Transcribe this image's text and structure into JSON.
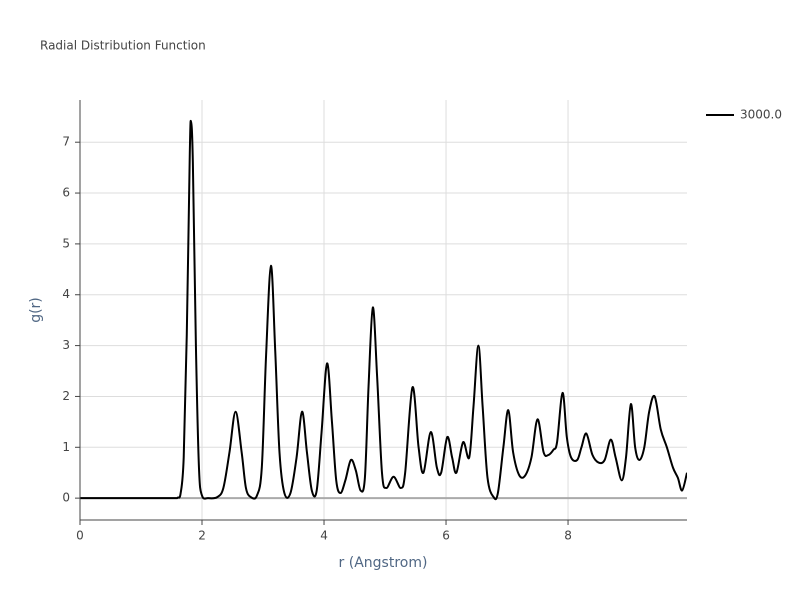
{
  "chart_data": {
    "type": "line",
    "title": "Radial Distribution Function",
    "x_label": "r (Angstrom)",
    "y_label": "g(r)",
    "x": [
      0,
      0.8,
      1.5,
      1.6,
      1.65,
      1.7,
      1.75,
      1.8,
      1.82,
      1.85,
      1.9,
      1.95,
      2.0,
      2.1,
      2.25,
      2.35,
      2.45,
      2.55,
      2.65,
      2.72,
      2.8,
      2.9,
      2.98,
      3.05,
      3.13,
      3.2,
      3.27,
      3.35,
      3.45,
      3.55,
      3.64,
      3.72,
      3.8,
      3.88,
      3.96,
      4.05,
      4.13,
      4.2,
      4.27,
      4.35,
      4.44,
      4.52,
      4.6,
      4.67,
      4.73,
      4.8,
      4.87,
      4.95,
      5.02,
      5.14,
      5.26,
      5.33,
      5.45,
      5.55,
      5.63,
      5.75,
      5.85,
      5.92,
      6.02,
      6.1,
      6.17,
      6.28,
      6.38,
      6.45,
      6.53,
      6.6,
      6.68,
      6.78,
      6.85,
      6.94,
      7.02,
      7.1,
      7.2,
      7.3,
      7.4,
      7.5,
      7.6,
      7.68,
      7.76,
      7.82,
      7.91,
      7.98,
      8.05,
      8.15,
      8.22,
      8.3,
      8.4,
      8.5,
      8.6,
      8.7,
      8.78,
      8.88,
      8.95,
      9.03,
      9.1,
      9.17,
      9.25,
      9.33,
      9.42,
      9.52,
      9.62,
      9.72,
      9.8,
      9.87,
      9.95
    ],
    "series": [
      {
        "name": "3000.0",
        "color": "#000000",
        "values": [
          0,
          0,
          0,
          0.01,
          0.1,
          0.8,
          3.2,
          6.8,
          7.4,
          6.6,
          3.0,
          0.6,
          0.05,
          0,
          0.02,
          0.2,
          0.9,
          1.7,
          0.9,
          0.2,
          0.02,
          0.05,
          0.6,
          2.8,
          4.57,
          2.9,
          0.9,
          0.1,
          0.1,
          0.8,
          1.7,
          0.9,
          0.15,
          0.15,
          1.3,
          2.65,
          1.5,
          0.35,
          0.1,
          0.35,
          0.75,
          0.55,
          0.15,
          0.4,
          2.2,
          3.75,
          2.4,
          0.5,
          0.2,
          0.42,
          0.2,
          0.5,
          2.18,
          1.0,
          0.5,
          1.3,
          0.6,
          0.5,
          1.2,
          0.8,
          0.5,
          1.1,
          0.8,
          1.8,
          3.0,
          1.8,
          0.4,
          0.02,
          0.1,
          1.0,
          1.73,
          0.9,
          0.45,
          0.45,
          0.8,
          1.55,
          0.9,
          0.85,
          0.95,
          1.1,
          2.07,
          1.2,
          0.8,
          0.75,
          1.0,
          1.27,
          0.85,
          0.7,
          0.75,
          1.15,
          0.8,
          0.35,
          0.8,
          1.85,
          1.0,
          0.75,
          1.0,
          1.7,
          2.0,
          1.35,
          1.0,
          0.6,
          0.4,
          0.15,
          0.5
        ]
      }
    ],
    "xlim": [
      0,
      9.95
    ],
    "xticks": [
      0,
      2,
      4,
      6,
      8
    ],
    "ylim": [
      -0.43,
      7.83
    ],
    "yticks": [
      0,
      1,
      2,
      3,
      4,
      5,
      6,
      7
    ],
    "grid": true,
    "legend": "outside-right"
  }
}
